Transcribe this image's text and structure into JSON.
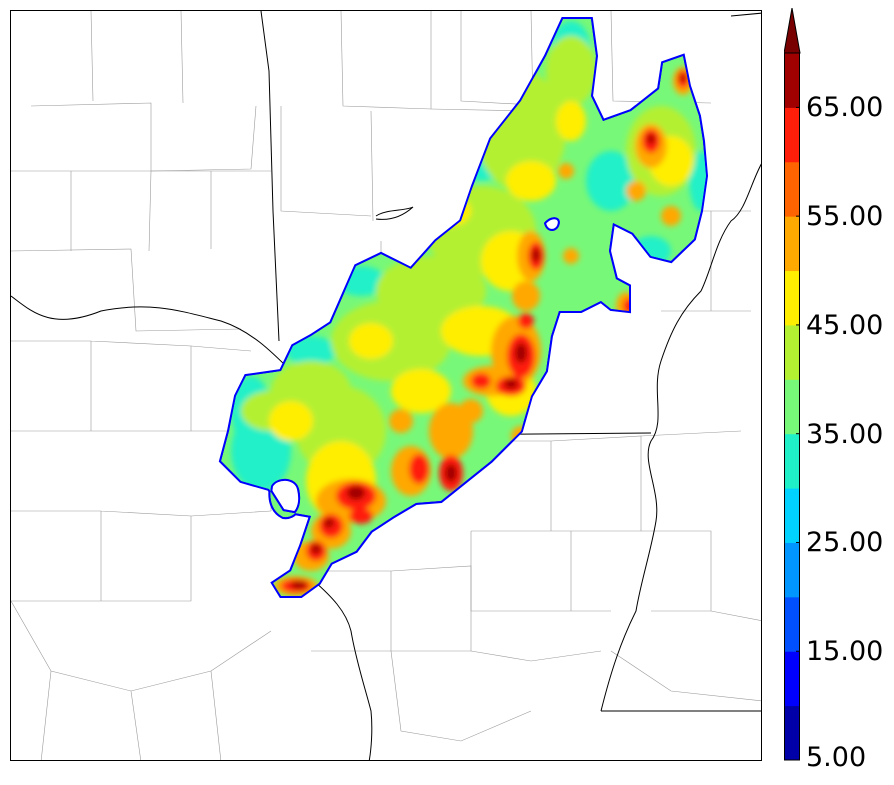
{
  "colorbar": {
    "labels": [
      "65.00",
      "55.00",
      "45.00",
      "35.00",
      "25.00",
      "15.00",
      "5.00"
    ],
    "label_values": [
      65,
      55,
      45,
      35,
      25,
      15,
      5
    ],
    "min": 5,
    "max": 70,
    "extend": "max",
    "colors": [
      "#0000a8",
      "#0000ff",
      "#0050ff",
      "#0096ff",
      "#00d2ff",
      "#20f0c8",
      "#78f878",
      "#b4f032",
      "#ffee00",
      "#ffa800",
      "#ff6400",
      "#ff1e0a",
      "#a00000",
      "#780000"
    ]
  }
}
